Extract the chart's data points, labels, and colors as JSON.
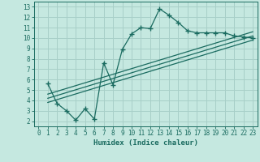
{
  "xlabel": "Humidex (Indice chaleur)",
  "background_color": "#c5e8e0",
  "grid_color": "#a8cfc8",
  "line_color": "#1a6b60",
  "spine_color": "#1a6b60",
  "xlim": [
    -0.5,
    23.5
  ],
  "ylim": [
    1.5,
    13.5
  ],
  "xticks": [
    0,
    1,
    2,
    3,
    4,
    5,
    6,
    7,
    8,
    9,
    10,
    11,
    12,
    13,
    14,
    15,
    16,
    17,
    18,
    19,
    20,
    21,
    22,
    23
  ],
  "yticks": [
    2,
    3,
    4,
    5,
    6,
    7,
    8,
    9,
    10,
    11,
    12,
    13
  ],
  "curve_x": [
    1,
    2,
    3,
    4,
    5,
    6,
    7,
    8,
    9,
    10,
    11,
    12,
    13,
    14,
    15,
    16,
    17,
    18,
    19,
    20,
    21,
    22,
    23
  ],
  "curve_y": [
    5.6,
    3.7,
    3.0,
    2.1,
    3.2,
    2.2,
    7.6,
    5.5,
    8.9,
    10.4,
    11.0,
    10.9,
    12.8,
    12.2,
    11.5,
    10.7,
    10.5,
    10.5,
    10.5,
    10.5,
    10.2,
    10.1,
    10.0
  ],
  "line1_x": [
    1,
    23
  ],
  "line1_y": [
    3.8,
    9.8
  ],
  "line2_x": [
    1,
    23
  ],
  "line2_y": [
    4.2,
    10.2
  ],
  "line3_x": [
    1,
    23
  ],
  "line3_y": [
    4.6,
    10.6
  ]
}
